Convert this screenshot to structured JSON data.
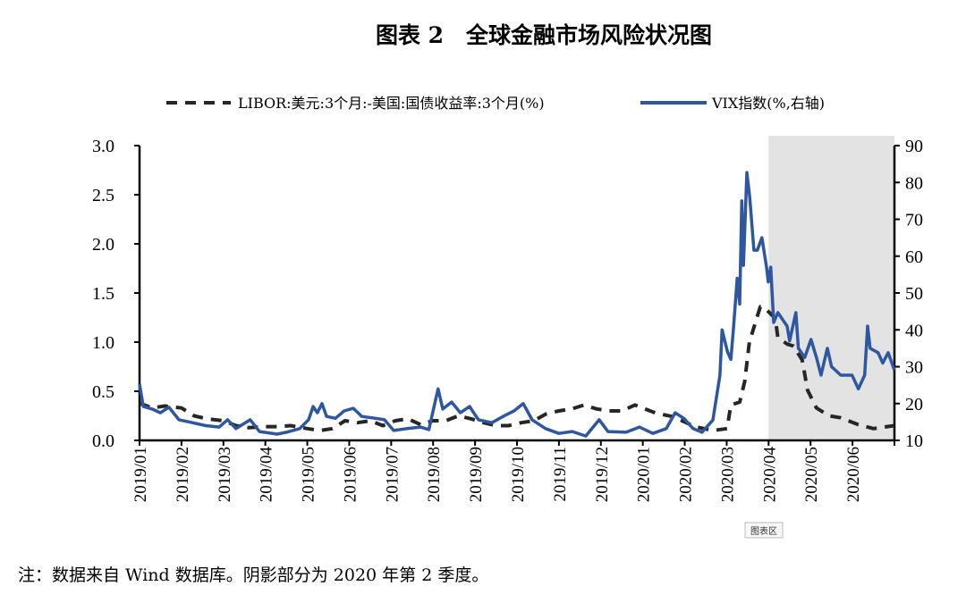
{
  "chart_data": {
    "type": "line",
    "title": "图表 2　全球金融市场风险状况图",
    "note": "注：数据来自 Wind 数据库。阴影部分为 2020 年第 2 季度。",
    "tooltip": "图表区",
    "x_unit": "months since 2019/01",
    "x_range": [
      0,
      18
    ],
    "x_tick_labels": [
      "2019/01",
      "2019/02",
      "2019/03",
      "2019/04",
      "2019/05",
      "2019/06",
      "2019/07",
      "2019/08",
      "2019/09",
      "2019/10",
      "2019/11",
      "2019/12",
      "2020/01",
      "2020/02",
      "2020/03",
      "2020/04",
      "2020/05",
      "2020/06"
    ],
    "y_left": {
      "range": [
        0,
        3.0
      ],
      "ticks": [
        "0.0",
        "0.5",
        "1.0",
        "1.5",
        "2.0",
        "2.5",
        "3.0"
      ]
    },
    "y_right": {
      "range": [
        10,
        90
      ],
      "ticks": [
        "10",
        "20",
        "30",
        "40",
        "50",
        "60",
        "70",
        "80",
        "90"
      ]
    },
    "shaded_region": {
      "from": 15,
      "to": 18,
      "color": "#e3e3e3"
    },
    "legend_position": "top",
    "series": [
      {
        "name": "LIBOR:美元:3个月:-美国:国债收益率:3个月(%)",
        "axis": "left",
        "style": "dashed",
        "color": "#262626",
        "points": [
          [
            0,
            0.38
          ],
          [
            0.3,
            0.33
          ],
          [
            0.6,
            0.35
          ],
          [
            1.0,
            0.33
          ],
          [
            1.3,
            0.25
          ],
          [
            1.6,
            0.22
          ],
          [
            2.0,
            0.2
          ],
          [
            2.3,
            0.15
          ],
          [
            2.6,
            0.13
          ],
          [
            3.0,
            0.14
          ],
          [
            3.3,
            0.14
          ],
          [
            3.6,
            0.15
          ],
          [
            4.0,
            0.12
          ],
          [
            4.3,
            0.1
          ],
          [
            4.6,
            0.12
          ],
          [
            4.9,
            0.2
          ],
          [
            5.2,
            0.18
          ],
          [
            5.5,
            0.2
          ],
          [
            5.8,
            0.15
          ],
          [
            6.1,
            0.2
          ],
          [
            6.4,
            0.22
          ],
          [
            6.7,
            0.16
          ],
          [
            7.0,
            0.2
          ],
          [
            7.3,
            0.2
          ],
          [
            7.6,
            0.25
          ],
          [
            7.9,
            0.22
          ],
          [
            8.2,
            0.18
          ],
          [
            8.5,
            0.15
          ],
          [
            8.8,
            0.15
          ],
          [
            9.1,
            0.18
          ],
          [
            9.4,
            0.2
          ],
          [
            9.7,
            0.27
          ],
          [
            10.0,
            0.3
          ],
          [
            10.3,
            0.32
          ],
          [
            10.6,
            0.36
          ],
          [
            10.9,
            0.32
          ],
          [
            11.2,
            0.3
          ],
          [
            11.5,
            0.3
          ],
          [
            11.81,
            0.36
          ],
          [
            12.3,
            0.28
          ],
          [
            12.73,
            0.24
          ],
          [
            13.24,
            0.14
          ],
          [
            13.67,
            0.1
          ],
          [
            14.01,
            0.12
          ],
          [
            14.1,
            0.36
          ],
          [
            14.31,
            0.39
          ],
          [
            14.43,
            0.6
          ],
          [
            14.54,
            1.0
          ],
          [
            14.65,
            1.15
          ],
          [
            14.8,
            1.36
          ],
          [
            14.95,
            1.33
          ],
          [
            15.16,
            1.24
          ],
          [
            15.22,
            1.05
          ],
          [
            15.44,
            0.98
          ],
          [
            15.59,
            0.96
          ],
          [
            15.8,
            0.82
          ],
          [
            15.93,
            0.51
          ],
          [
            16.14,
            0.33
          ],
          [
            16.44,
            0.25
          ],
          [
            16.72,
            0.23
          ],
          [
            17.14,
            0.16
          ],
          [
            17.5,
            0.12
          ],
          [
            18,
            0.15
          ]
        ]
      },
      {
        "name": "VIX指数(%,右轴)",
        "axis": "right",
        "style": "solid",
        "color": "#2f57a0",
        "points": [
          [
            0,
            25.3
          ],
          [
            0.09,
            19.2
          ],
          [
            0.3,
            18.5
          ],
          [
            0.5,
            17.5
          ],
          [
            0.7,
            19
          ],
          [
            0.94,
            15.6
          ],
          [
            1.26,
            14.8
          ],
          [
            1.58,
            14
          ],
          [
            1.9,
            13.6
          ],
          [
            2.1,
            15.6
          ],
          [
            2.3,
            13.2
          ],
          [
            2.64,
            15.6
          ],
          [
            2.86,
            12.4
          ],
          [
            3.28,
            11.7
          ],
          [
            3.5,
            12.2
          ],
          [
            3.82,
            13.2
          ],
          [
            4.03,
            15.6
          ],
          [
            4.14,
            19.2
          ],
          [
            4.24,
            17.5
          ],
          [
            4.35,
            20
          ],
          [
            4.46,
            16.5
          ],
          [
            4.67,
            16
          ],
          [
            4.88,
            18
          ],
          [
            5.1,
            18.7
          ],
          [
            5.3,
            16.5
          ],
          [
            5.63,
            16
          ],
          [
            5.84,
            15.6
          ],
          [
            6.06,
            12.7
          ],
          [
            6.38,
            13.2
          ],
          [
            6.7,
            13.6
          ],
          [
            6.9,
            12.9
          ],
          [
            7.0,
            18
          ],
          [
            7.12,
            24
          ],
          [
            7.23,
            18.5
          ],
          [
            7.44,
            20.4
          ],
          [
            7.65,
            17.5
          ],
          [
            7.87,
            19.2
          ],
          [
            8.08,
            15.6
          ],
          [
            8.4,
            14.8
          ],
          [
            8.72,
            16.8
          ],
          [
            8.93,
            18
          ],
          [
            9.15,
            20
          ],
          [
            9.36,
            15.6
          ],
          [
            9.68,
            13.2
          ],
          [
            10,
            11.9
          ],
          [
            10.32,
            12.4
          ],
          [
            10.64,
            11.2
          ],
          [
            10.96,
            15.6
          ],
          [
            11.17,
            12.4
          ],
          [
            11.6,
            12.2
          ],
          [
            11.92,
            13.6
          ],
          [
            12.24,
            11.9
          ],
          [
            12.56,
            13.2
          ],
          [
            12.77,
            17.5
          ],
          [
            12.98,
            16
          ],
          [
            13.2,
            13.2
          ],
          [
            13.41,
            12.2
          ],
          [
            13.67,
            15.5
          ],
          [
            13.84,
            27.7
          ],
          [
            13.89,
            40
          ],
          [
            14.02,
            34
          ],
          [
            14.1,
            32
          ],
          [
            14.16,
            40
          ],
          [
            14.25,
            54
          ],
          [
            14.31,
            47
          ],
          [
            14.36,
            75
          ],
          [
            14.4,
            57.5
          ],
          [
            14.48,
            82.7
          ],
          [
            14.55,
            76
          ],
          [
            14.65,
            61.6
          ],
          [
            14.73,
            61.6
          ],
          [
            14.84,
            65
          ],
          [
            14.95,
            57
          ],
          [
            14.99,
            53
          ],
          [
            15.05,
            57
          ],
          [
            15.12,
            42
          ],
          [
            15.22,
            44.7
          ],
          [
            15.44,
            41
          ],
          [
            15.5,
            37
          ],
          [
            15.65,
            44.7
          ],
          [
            15.71,
            35
          ],
          [
            15.86,
            32.5
          ],
          [
            16.01,
            37.4
          ],
          [
            16.14,
            32.5
          ],
          [
            16.25,
            27.7
          ],
          [
            16.4,
            35
          ],
          [
            16.5,
            30
          ],
          [
            16.72,
            27.7
          ],
          [
            16.99,
            27.7
          ],
          [
            17.14,
            24
          ],
          [
            17.29,
            27.7
          ],
          [
            17.36,
            41
          ],
          [
            17.42,
            35
          ],
          [
            17.61,
            33.8
          ],
          [
            17.72,
            31
          ],
          [
            17.85,
            33.8
          ],
          [
            18,
            29
          ]
        ]
      }
    ]
  }
}
